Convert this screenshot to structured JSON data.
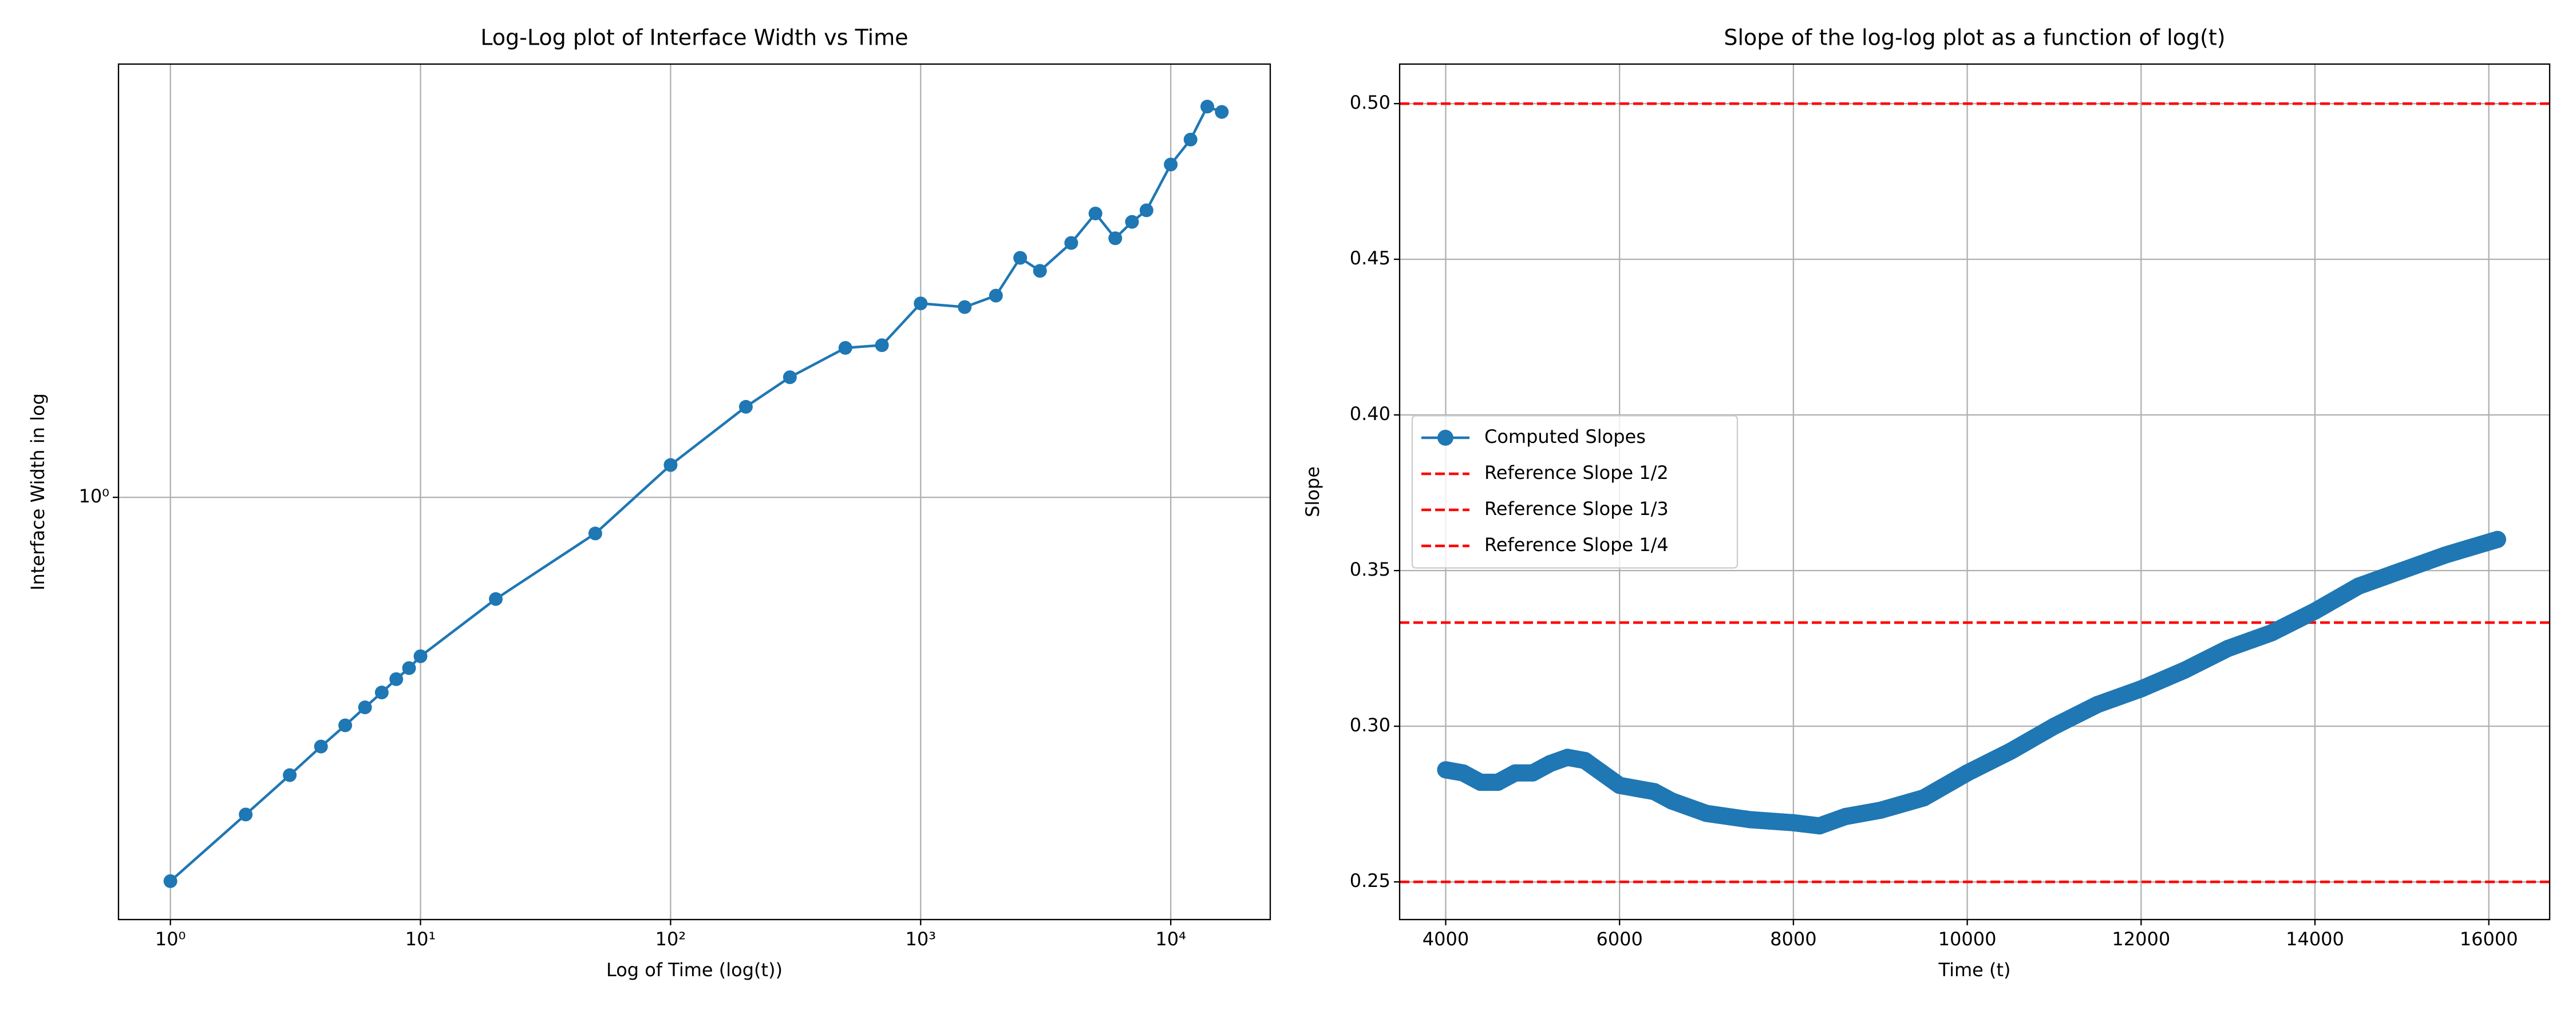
{
  "chart_data": [
    {
      "type": "line",
      "title": "Log-Log plot of Interface Width vs Time",
      "xlabel": "Log of Time (log(t))",
      "ylabel": "Interface Width in log",
      "xscale": "log",
      "yscale": "log",
      "grid": true,
      "xlim": [
        0.62,
        25000
      ],
      "ylim": [
        0.115,
        9.2
      ],
      "xticks": [
        {
          "value": 1,
          "label": "10⁰"
        },
        {
          "value": 10,
          "label": "10¹"
        },
        {
          "value": 100,
          "label": "10²"
        },
        {
          "value": 1000,
          "label": "10³"
        },
        {
          "value": 10000,
          "label": "10⁴"
        }
      ],
      "yticks": [
        {
          "value": 1,
          "label": "10⁰"
        }
      ],
      "x": [
        1,
        2,
        3,
        4,
        5,
        6,
        7,
        8,
        9,
        10,
        20,
        50,
        100,
        200,
        300,
        500,
        700,
        1000,
        1500,
        2000,
        2500,
        3000,
        4000,
        5000,
        6000,
        7000,
        8000,
        10000,
        12000,
        14000,
        16000
      ],
      "series": [
        {
          "color": "#1f77b4",
          "values": [
            0.14,
            0.197,
            0.241,
            0.279,
            0.311,
            0.341,
            0.368,
            0.394,
            0.417,
            0.443,
            0.594,
            0.831,
            1.18,
            1.59,
            1.85,
            2.15,
            2.18,
            2.7,
            2.65,
            2.81,
            3.41,
            3.19,
            3.68,
            4.28,
            3.77,
            4.1,
            4.35,
            5.5,
            6.25,
            7.4,
            7.2
          ]
        }
      ]
    },
    {
      "type": "line",
      "title": "Slope of the log-log plot as a function of log(t)",
      "xlabel": "Time (t)",
      "ylabel": "Slope",
      "xscale": "linear",
      "yscale": "linear",
      "grid": true,
      "legend_loc": "center left",
      "xlim": [
        3470,
        16700
      ],
      "ylim": [
        0.2379,
        0.5127
      ],
      "xticks": [
        4000,
        6000,
        8000,
        10000,
        12000,
        14000,
        16000
      ],
      "yticks": [
        0.25,
        {
          "value": 0.3,
          "label": "0.30"
        },
        0.35,
        {
          "value": 0.4,
          "label": "0.40"
        },
        0.45,
        {
          "value": 0.5,
          "label": "0.50"
        }
      ],
      "x": [
        4000,
        4200,
        4400,
        4600,
        4800,
        5000,
        5200,
        5400,
        5600,
        5800,
        6000,
        6200,
        6400,
        6600,
        7000,
        7500,
        8000,
        8300,
        8600,
        9000,
        9500,
        10000,
        10500,
        11000,
        11500,
        12000,
        12500,
        13000,
        13500,
        14000,
        14500,
        15000,
        15500,
        16100
      ],
      "series": [
        {
          "name": "Computed Slopes",
          "color": "#1f77b4",
          "values": [
            0.286,
            0.285,
            0.282,
            0.282,
            0.285,
            0.285,
            0.288,
            0.29,
            0.289,
            0.285,
            0.281,
            0.28,
            0.279,
            0.276,
            0.272,
            0.27,
            0.269,
            0.268,
            0.271,
            0.273,
            0.277,
            0.285,
            0.292,
            0.3,
            0.307,
            0.312,
            0.318,
            0.325,
            0.33,
            0.337,
            0.345,
            0.35,
            0.355,
            0.36
          ]
        }
      ],
      "reference_lines": [
        {
          "name": "Reference Slope 1/2",
          "value": 0.5,
          "color": "#ff0000"
        },
        {
          "name": "Reference Slope 1/3",
          "value": 0.3333,
          "color": "#ff0000"
        },
        {
          "name": "Reference Slope 1/4",
          "value": 0.25,
          "color": "#ff0000"
        }
      ]
    }
  ]
}
